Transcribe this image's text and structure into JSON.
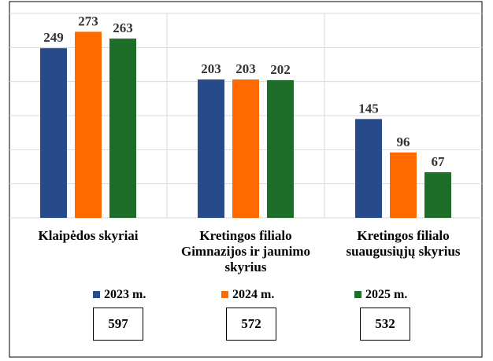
{
  "chart_data": {
    "type": "bar",
    "categories": [
      "Klaipėdos skyriai",
      "Kretingos filialo Gimnazijos ir jaunimo skyrius",
      "Kretingos filialo suaugusiųjų skyrius"
    ],
    "series": [
      {
        "name": "2023 m.",
        "color": "#264a8a",
        "values": [
          249,
          203,
          145
        ]
      },
      {
        "name": "2024 m.",
        "color": "#ff6a00",
        "values": [
          273,
          203,
          96
        ]
      },
      {
        "name": "2025 m.",
        "color": "#1e6e2a",
        "values": [
          263,
          202,
          67
        ]
      }
    ],
    "totals": [
      597,
      572,
      532
    ],
    "ylim": [
      0,
      300
    ],
    "yticks": [
      0,
      50,
      100,
      150,
      200,
      250,
      300
    ],
    "grid": true
  }
}
